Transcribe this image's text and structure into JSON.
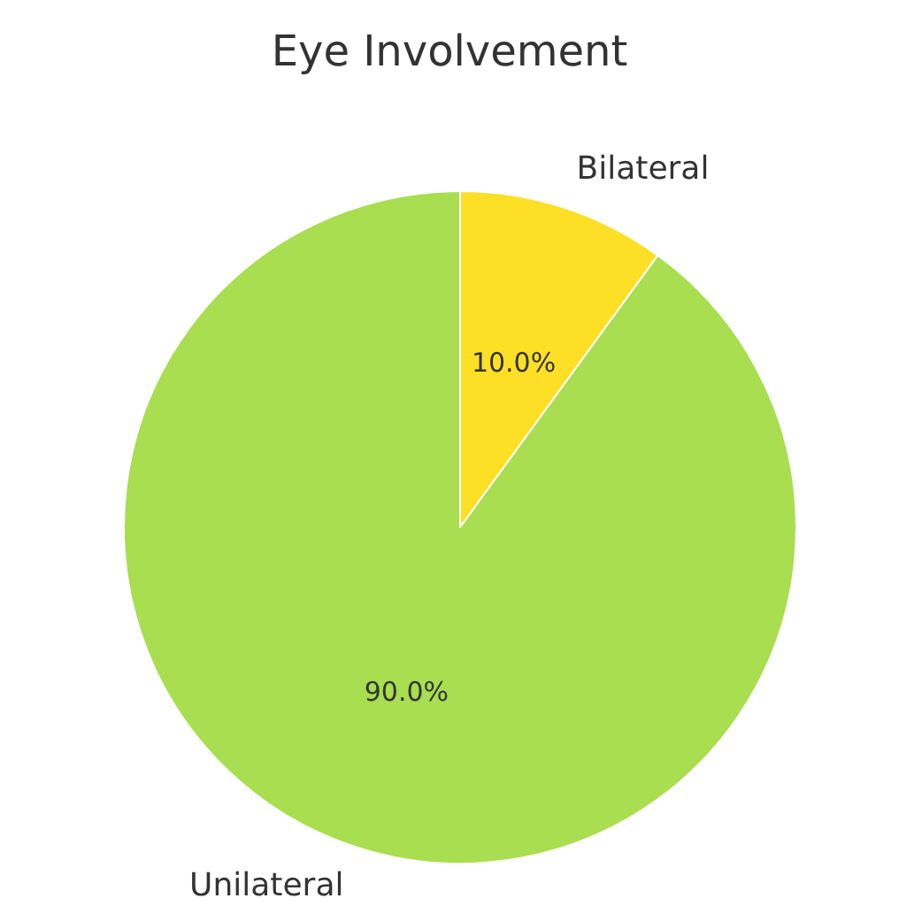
{
  "chart_data": {
    "type": "pie",
    "title": "Eye Involvement",
    "categories": [
      "Bilateral",
      "Unilateral"
    ],
    "values": [
      10,
      90
    ],
    "value_labels": [
      "10.0%",
      "90.0%"
    ],
    "colors": [
      "#fddf25",
      "#a8de4f"
    ]
  }
}
